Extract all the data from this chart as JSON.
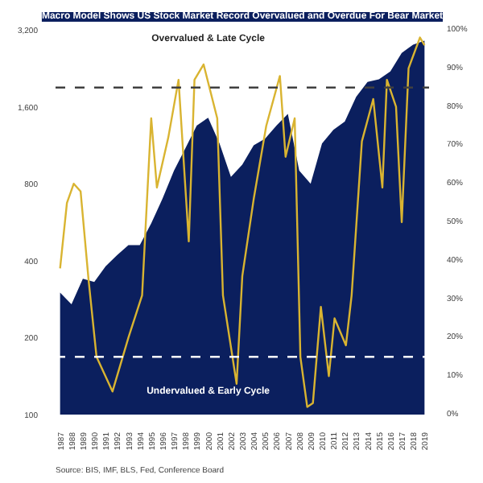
{
  "chart_data": {
    "type": "line",
    "title": "Macro Model Shows US Stock Market Record Overvalued and Overdue For Bear Market",
    "annotations": [
      "Source: BIS, IMF, BLS, Fed, Conference Board"
    ],
    "log": "y",
    "grid": false,
    "xlim": [
      1986.6,
      2019.4
    ],
    "xticks": [
      1987,
      1988,
      1989,
      1990,
      1991,
      1992,
      1993,
      1994,
      1995,
      1996,
      1997,
      1998,
      1999,
      2000,
      2001,
      2002,
      2003,
      2004,
      2005,
      2006,
      2007,
      2008,
      2009,
      2010,
      2011,
      2012,
      2013,
      2014,
      2015,
      2016,
      2017,
      2018,
      2019
    ],
    "ylim": [
      100,
      3200
    ],
    "yticks": [
      100,
      200,
      400,
      800,
      {
        "value": 1600,
        "label": "1,600"
      },
      {
        "value": 3200,
        "label": "3,200"
      }
    ],
    "y2lim": [
      0,
      100
    ],
    "y2ticks": [
      {
        "value": 0,
        "label": "0%"
      },
      {
        "value": 10,
        "label": "10%"
      },
      {
        "value": 20,
        "label": "20%"
      },
      {
        "value": 30,
        "label": "30%"
      },
      {
        "value": 40,
        "label": "40%"
      },
      {
        "value": 50,
        "label": "50%"
      },
      {
        "value": 60,
        "label": "60%"
      },
      {
        "value": 70,
        "label": "70%"
      },
      {
        "value": 80,
        "label": "80%"
      },
      {
        "value": 90,
        "label": "90%"
      },
      {
        "value": 100,
        "label": "100%"
      }
    ],
    "ref_lines": [
      {
        "axis": "y2",
        "value": 85,
        "label": "Overvalued & Late Cycle",
        "color": "#404040",
        "line_style": "dashed"
      },
      {
        "axis": "y2",
        "value": 15,
        "label": "Undervalued & Early Cycle",
        "color": "#ffffff",
        "line_style": "dashed"
      }
    ],
    "series": [
      {
        "type": "area",
        "color": "#0b1f5e",
        "x": [
          1987,
          1988,
          1989,
          1990,
          1991,
          1992,
          1993,
          1994,
          1995,
          1996,
          1997,
          1998,
          1999,
          2000,
          2001,
          2002,
          2003,
          2004,
          2005,
          2006,
          2007,
          2008,
          2009,
          2010,
          2011,
          2012,
          2013,
          2014,
          2015,
          2016,
          2017,
          2018,
          2019
        ],
        "values": [
          300,
          270,
          340,
          330,
          380,
          420,
          460,
          460,
          560,
          700,
          900,
          1100,
          1350,
          1450,
          1150,
          850,
          950,
          1130,
          1200,
          1350,
          1500,
          900,
          800,
          1150,
          1300,
          1400,
          1750,
          2000,
          2050,
          2200,
          2600,
          2800,
          2900
        ]
      },
      {
        "axis": "y2",
        "color": "#d9b431",
        "x": [
          1987,
          1987.6,
          1988.2,
          1988.8,
          1989.5,
          1990.2,
          1991.6,
          1993,
          1994.2,
          1995,
          1995.5,
          1996.5,
          1997.4,
          1998.3,
          1998.8,
          1999.6,
          2000.8,
          2001.3,
          2002.5,
          2003,
          2004,
          2005.1,
          2006.3,
          2006.8,
          2007.6,
          2008.1,
          2008.7,
          2009.2,
          2009.9,
          2010.6,
          2011.1,
          2012.1,
          2012.6,
          2013.5,
          2014.5,
          2015.3,
          2015.7,
          2016.5,
          2017,
          2017.6,
          2018.6,
          2019
        ],
        "values": [
          38,
          55,
          60,
          58,
          35,
          15,
          6,
          20,
          31,
          77,
          59,
          72,
          87,
          45,
          87,
          91,
          77,
          31,
          8,
          36,
          56,
          75,
          88,
          67,
          77,
          15,
          2,
          3,
          28,
          10,
          25,
          18,
          31,
          71,
          82,
          59,
          87,
          80,
          50,
          90,
          98,
          96
        ]
      }
    ]
  }
}
